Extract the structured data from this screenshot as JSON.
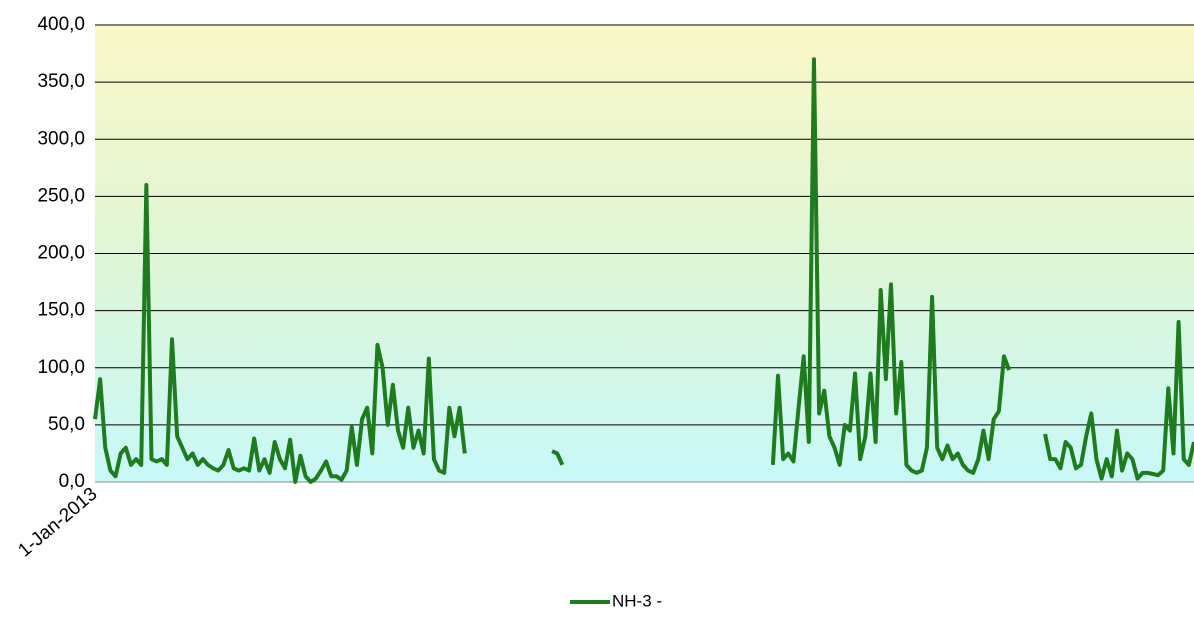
{
  "chart_data": {
    "type": "line",
    "categories": [
      "1-Jan-2013",
      null,
      null,
      null,
      null,
      null,
      null,
      null,
      null,
      null,
      null,
      null,
      null,
      null,
      null,
      null,
      null,
      null,
      null,
      null,
      null,
      null,
      null,
      null,
      null,
      null,
      null,
      null,
      null,
      null,
      null,
      null,
      null,
      null,
      null,
      null,
      null,
      null,
      null,
      null,
      null,
      null,
      null,
      null,
      null,
      null,
      null,
      null,
      null,
      null,
      null,
      null,
      null,
      null,
      null,
      null,
      null,
      null,
      null,
      null,
      null,
      null,
      null,
      null,
      null,
      null,
      null,
      null,
      null,
      null,
      null,
      null,
      null,
      null,
      null,
      null,
      null,
      null,
      null,
      null,
      null,
      null,
      null,
      null,
      null,
      null,
      null,
      null,
      null,
      null,
      null,
      null,
      null,
      null,
      null,
      null,
      null,
      null,
      null,
      null,
      null,
      null,
      null,
      null,
      null,
      null,
      null,
      null,
      null,
      null,
      null,
      null,
      null,
      null,
      null,
      null,
      null,
      null,
      null,
      null,
      null,
      null,
      null,
      null,
      null,
      null,
      null,
      null,
      null,
      null,
      null,
      null,
      null,
      null,
      null,
      null,
      null,
      null,
      null,
      null,
      null,
      null,
      null,
      null,
      null,
      null,
      null,
      null,
      null,
      null,
      null,
      null,
      null,
      null,
      null,
      null,
      null,
      null,
      null,
      null,
      null,
      null,
      null,
      null,
      null,
      null,
      null,
      null,
      null,
      null,
      null,
      null,
      null,
      null,
      null,
      null,
      null,
      null,
      null,
      null,
      null,
      null,
      null,
      null,
      null,
      null,
      null,
      null,
      null,
      null,
      null,
      null,
      null,
      null,
      null,
      null,
      null,
      null,
      null,
      null,
      null,
      null,
      null,
      null,
      null,
      null,
      null,
      null,
      null,
      null,
      null,
      null,
      null,
      null,
      null
    ],
    "series": [
      {
        "name": "NH-3 -",
        "color": "#1e7b1e",
        "values": [
          55,
          90,
          30,
          10,
          5,
          25,
          30,
          15,
          20,
          15,
          260,
          20,
          18,
          20,
          15,
          125,
          40,
          30,
          20,
          25,
          15,
          20,
          15,
          12,
          10,
          15,
          28,
          12,
          10,
          12,
          10,
          38,
          10,
          20,
          8,
          35,
          20,
          12,
          37,
          0,
          23,
          5,
          0,
          3,
          10,
          18,
          5,
          5,
          2,
          10,
          48,
          15,
          55,
          65,
          25,
          120,
          100,
          50,
          85,
          45,
          30,
          65,
          30,
          45,
          25,
          108,
          20,
          10,
          8,
          65,
          40,
          65,
          25,
          null,
          null,
          null,
          null,
          null,
          null,
          null,
          null,
          null,
          null,
          null,
          null,
          null,
          null,
          null,
          null,
          27,
          25,
          15,
          null,
          null,
          null,
          null,
          null,
          null,
          null,
          null,
          null,
          null,
          null,
          null,
          null,
          null,
          null,
          null,
          null,
          null,
          null,
          null,
          null,
          null,
          null,
          null,
          null,
          null,
          null,
          null,
          null,
          null,
          null,
          null,
          null,
          null,
          null,
          null,
          null,
          null,
          null,
          null,
          15,
          93,
          20,
          25,
          18,
          65,
          110,
          35,
          370,
          60,
          80,
          40,
          30,
          15,
          50,
          45,
          95,
          20,
          40,
          95,
          35,
          168,
          90,
          173,
          60,
          105,
          15,
          10,
          8,
          10,
          30,
          162,
          30,
          20,
          32,
          20,
          25,
          15,
          10,
          8,
          20,
          45,
          20,
          55,
          62,
          110,
          98,
          null,
          null,
          null,
          null,
          null,
          null,
          42,
          20,
          20,
          12,
          35,
          30,
          12,
          15,
          40,
          60,
          20,
          3,
          20,
          5,
          45,
          10,
          25,
          20,
          3,
          8,
          8,
          7,
          6,
          10,
          82,
          25,
          140,
          20,
          15,
          35
        ]
      }
    ],
    "ylim": [
      0,
      400
    ],
    "yticks": [
      {
        "value": 0,
        "label": "0,0"
      },
      {
        "value": 50,
        "label": "50,0"
      },
      {
        "value": 100,
        "label": "100,0"
      },
      {
        "value": 150,
        "label": "150,0"
      },
      {
        "value": 200,
        "label": "200,0"
      },
      {
        "value": 250,
        "label": "250,0"
      },
      {
        "value": 300,
        "label": "300,0"
      },
      {
        "value": 350,
        "label": "350,0"
      },
      {
        "value": 400,
        "label": "400,0"
      }
    ],
    "grid": true,
    "legend": "bottom"
  }
}
